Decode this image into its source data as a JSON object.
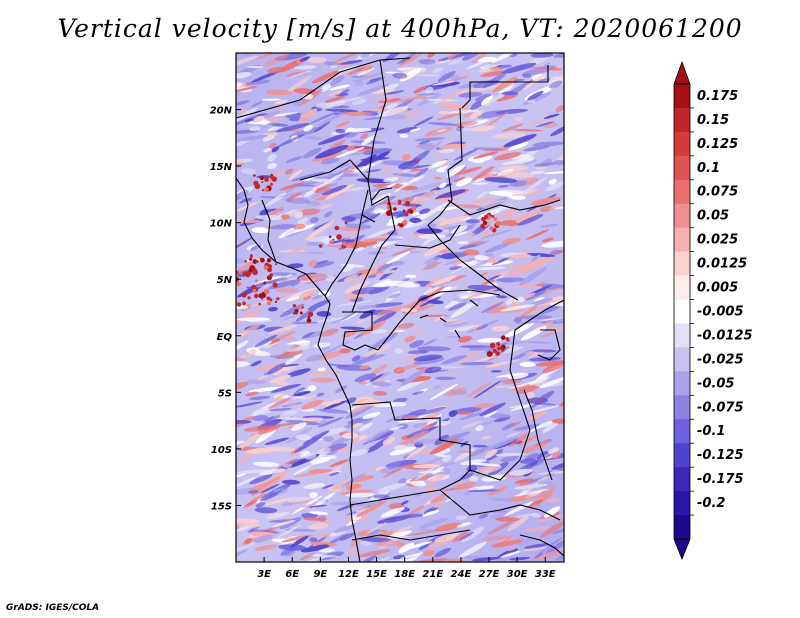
{
  "title": "Vertical velocity [m/s] at 400hPa, VT: 2020061200",
  "footer": "GrADS: IGES/COLA",
  "chart_data": {
    "type": "heatmap",
    "variable": "Vertical velocity",
    "units": "m/s",
    "level": "400hPa",
    "valid_time": "2020061200",
    "x_range_deg": [
      0,
      35
    ],
    "y_range_deg": [
      -20,
      25
    ],
    "x_tick_labels": [
      "3E",
      "6E",
      "9E",
      "12E",
      "15E",
      "18E",
      "21E",
      "24E",
      "27E",
      "30E",
      "33E"
    ],
    "x_tick_values": [
      3,
      6,
      9,
      12,
      15,
      18,
      21,
      24,
      27,
      30,
      33
    ],
    "y_tick_labels": [
      "20N",
      "15N",
      "10N",
      "5N",
      "EQ",
      "5S",
      "10S",
      "15S"
    ],
    "y_tick_values": [
      20,
      15,
      10,
      5,
      0,
      -5,
      -10,
      -15
    ],
    "colorbar_labels": [
      "0.175",
      "0.15",
      "0.125",
      "0.1",
      "0.075",
      "0.05",
      "0.025",
      "0.0125",
      "0.005",
      "-0.005",
      "-0.0125",
      "-0.025",
      "-0.05",
      "-0.075",
      "-0.1",
      "-0.125",
      "-0.175",
      "-0.2"
    ],
    "colorbar_colors": [
      "#a50f15",
      "#c0272d",
      "#d63b3b",
      "#e05353",
      "#ea7070",
      "#f08f8f",
      "#f6b0b0",
      "#fad0d0",
      "#fdecec",
      "#ffffff",
      "#e2e0f7",
      "#c7c2f0",
      "#aaa2ea",
      "#8c82e3",
      "#6e62dc",
      "#5044cf",
      "#3a28bd",
      "#2a16a8",
      "#1c0a8a"
    ],
    "features": {
      "strong_ascent": "red patches near 5N 0-7E (Gulf of Guinea), 13N 3E, 10-11N 18E, 10N 27E, 2S 28E",
      "background": "mostly blue (weak subsidence) with scattered red streaks"
    }
  }
}
